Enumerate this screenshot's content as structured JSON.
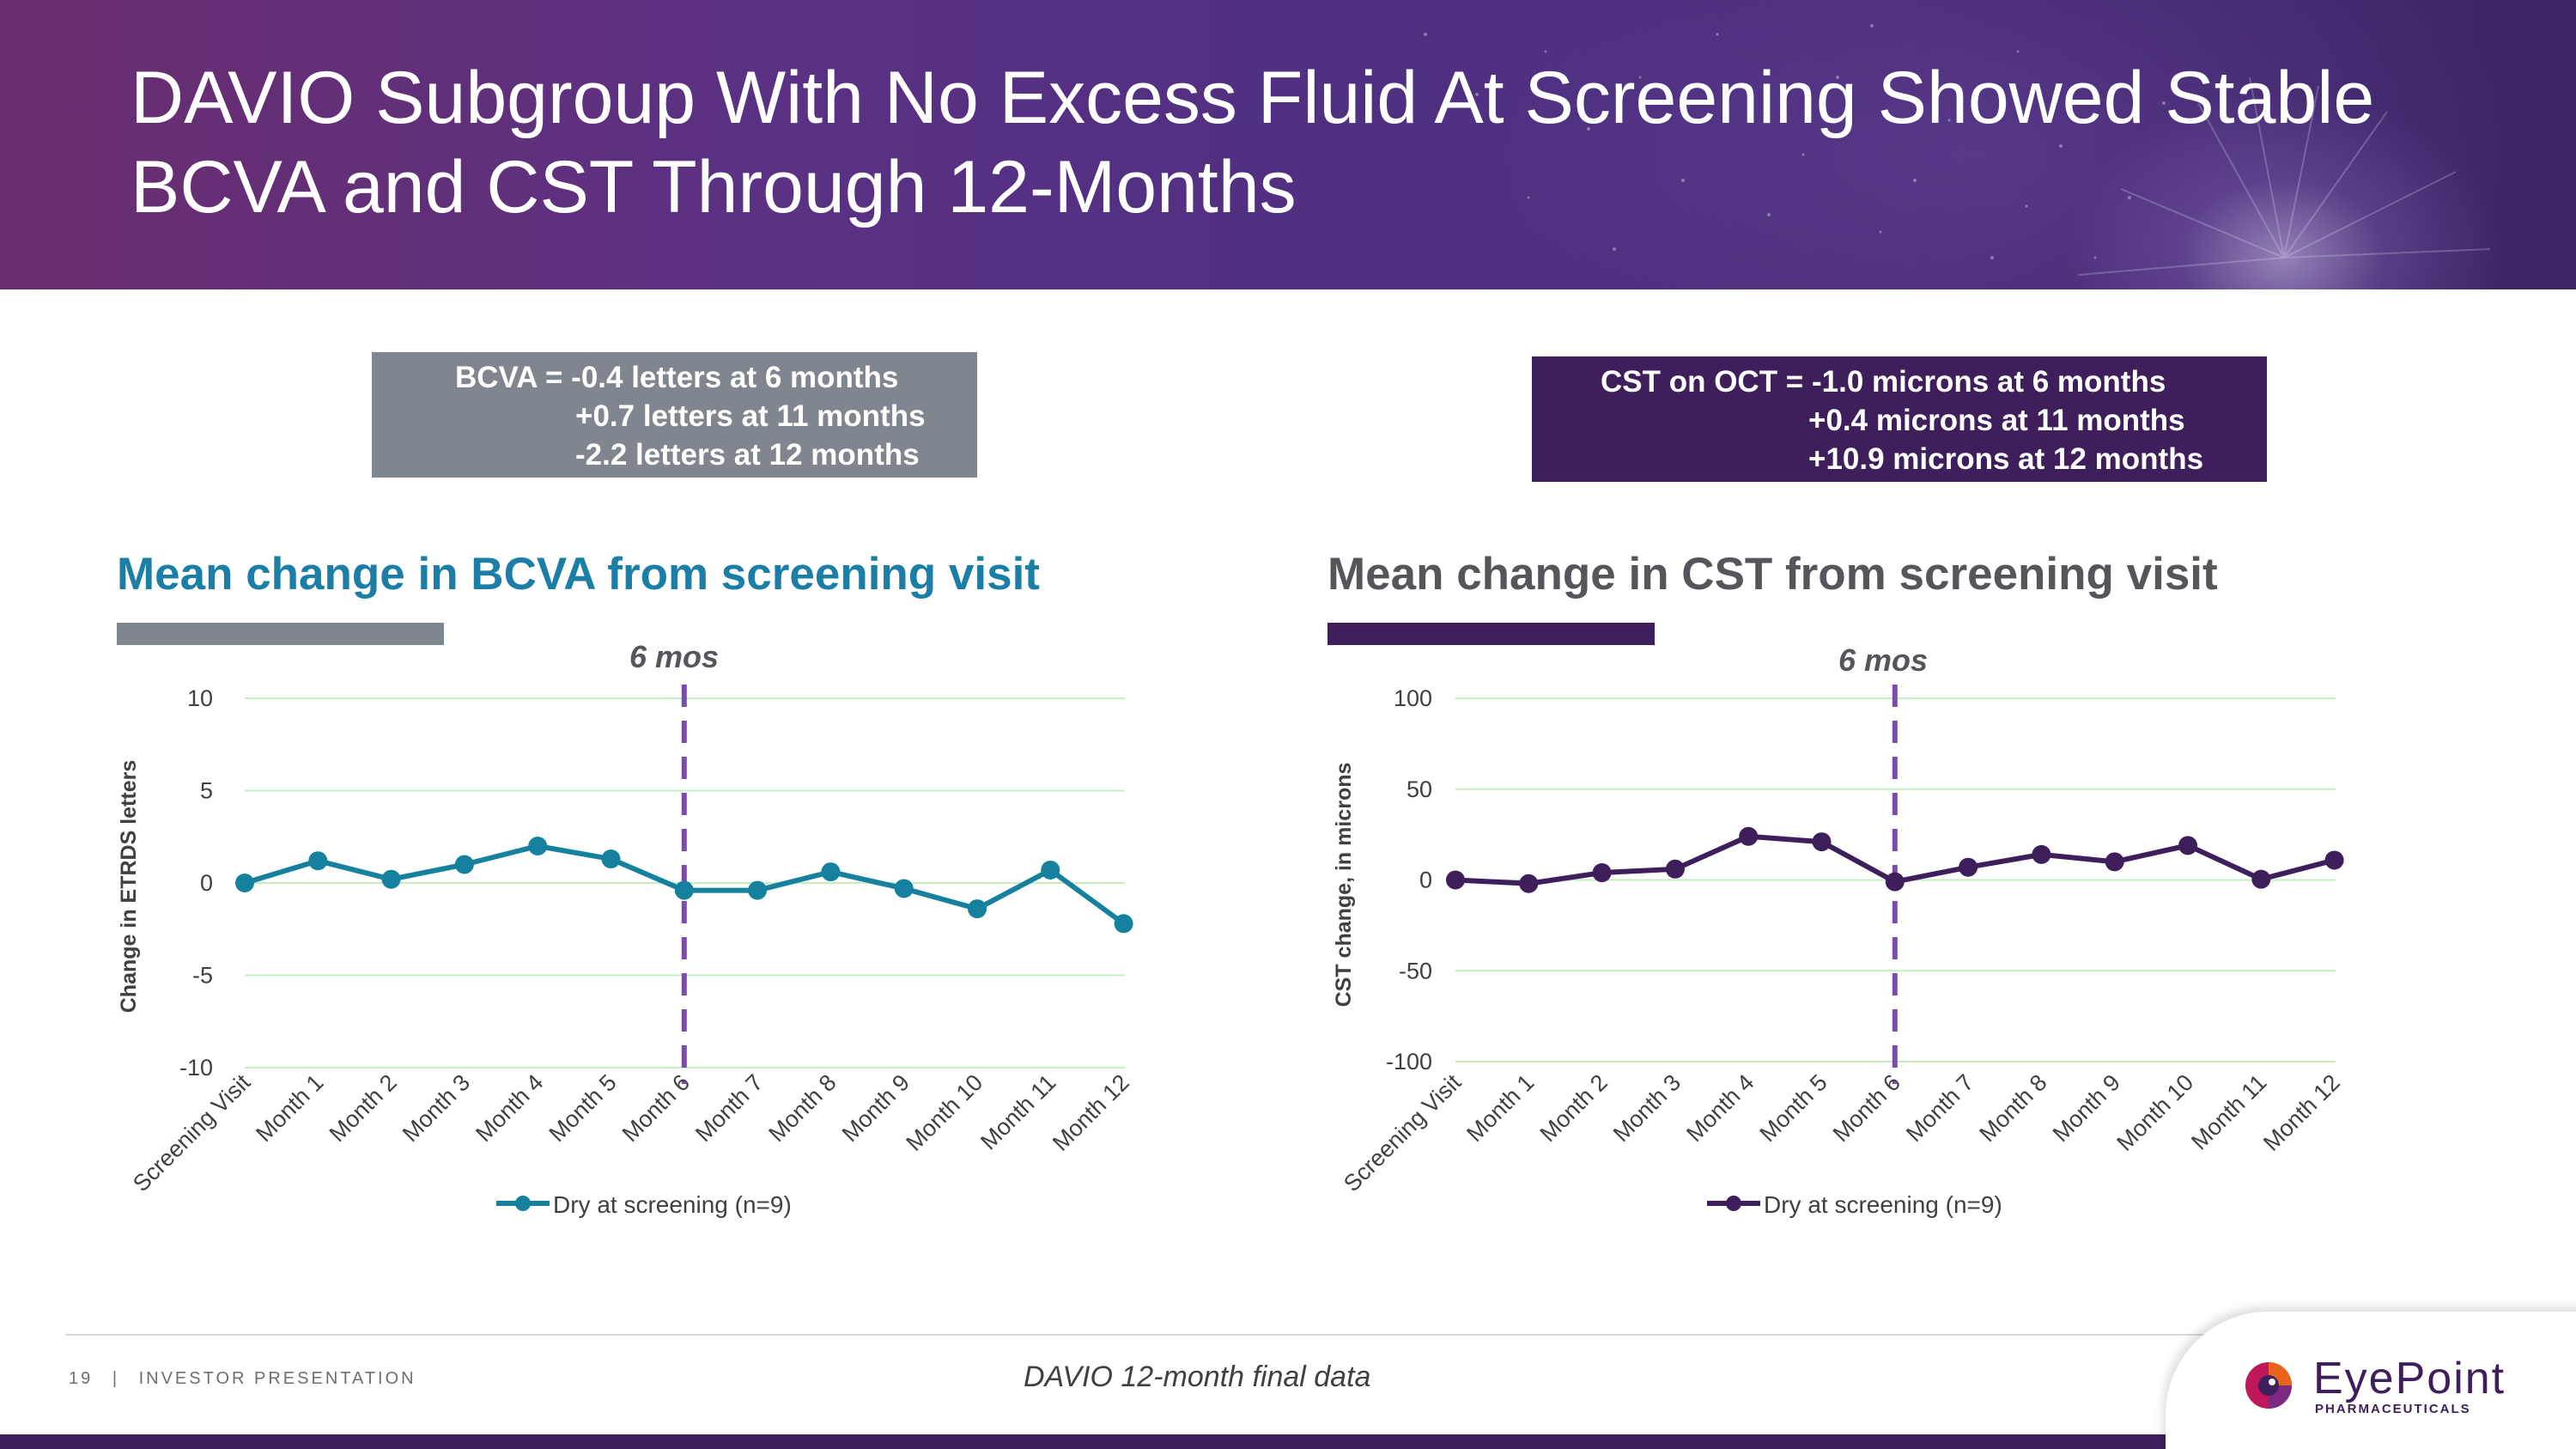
{
  "header": {
    "title_line1": "DAVIO Subgroup With No Excess Fluid At Screening Showed Stable",
    "title_line2": "BCVA and CST Through 12-Months"
  },
  "summary": {
    "bcva": {
      "line1": "BCVA = -0.4 letters at 6 months",
      "line2": "+0.7 letters at 11 months",
      "line3": "-2.2 letters at 12 months",
      "color": "#7f868f"
    },
    "cst": {
      "line1": "CST on OCT = -1.0 microns at 6 months",
      "line2": "+0.4 microns at 11 months",
      "line3": "+10.9 microns at 12 months",
      "color": "#3e1f5c"
    }
  },
  "chart_data": [
    {
      "type": "line",
      "title": "Mean change in BCVA from screening visit",
      "title_color": "#1a7ea6",
      "xlabel": "",
      "ylabel": "Change in ETRDS letters",
      "categories": [
        "Screening Visit",
        "Month 1",
        "Month 2",
        "Month 3",
        "Month 4",
        "Month 5",
        "Month 6",
        "Month 7",
        "Month 8",
        "Month 9",
        "Month 10",
        "Month 11",
        "Month 12"
      ],
      "series": [
        {
          "name": "Dry at screening (n=9)",
          "color": "#15819f",
          "values": [
            0,
            1.2,
            0.2,
            1.0,
            2.0,
            1.3,
            -0.4,
            -0.4,
            0.6,
            -0.3,
            -1.4,
            0.7,
            -2.2
          ]
        }
      ],
      "ylim": [
        -10,
        10
      ],
      "yticks": [
        10,
        5,
        0,
        -5,
        -10
      ],
      "grid": true,
      "grid_color": "#c6efc0",
      "annotation": {
        "label": "6 mos",
        "at_category": "Month 6",
        "style": "dashed",
        "color": "#7a4cae"
      },
      "legend": "bottom"
    },
    {
      "type": "line",
      "title": "Mean change in CST from screening visit",
      "title_color": "#55565b",
      "xlabel": "",
      "ylabel": "CST change, in microns",
      "categories": [
        "Screening Visit",
        "Month 1",
        "Month 2",
        "Month 3",
        "Month 4",
        "Month 5",
        "Month 6",
        "Month 7",
        "Month 8",
        "Month 9",
        "Month 10",
        "Month 11",
        "Month 12"
      ],
      "series": [
        {
          "name": "Dry at screening (n=9)",
          "color": "#3e1f5c",
          "values": [
            0,
            -2,
            4,
            6,
            24,
            21,
            -1,
            7,
            14,
            10,
            19,
            0.4,
            10.9
          ]
        }
      ],
      "ylim": [
        -100,
        100
      ],
      "yticks": [
        100,
        50,
        0,
        -50,
        -100
      ],
      "grid": true,
      "grid_color": "#c6efc0",
      "annotation": {
        "label": "6 mos",
        "at_category": "Month 6",
        "style": "dashed",
        "color": "#7a4cae"
      },
      "legend": "bottom"
    }
  ],
  "footer": {
    "page_number": "19",
    "separator": "|",
    "section": "INVESTOR PRESENTATION",
    "center_note": "DAVIO 12-month final data",
    "logo_name": "EyePoint",
    "logo_sub": "PHARMACEUTICALS"
  }
}
